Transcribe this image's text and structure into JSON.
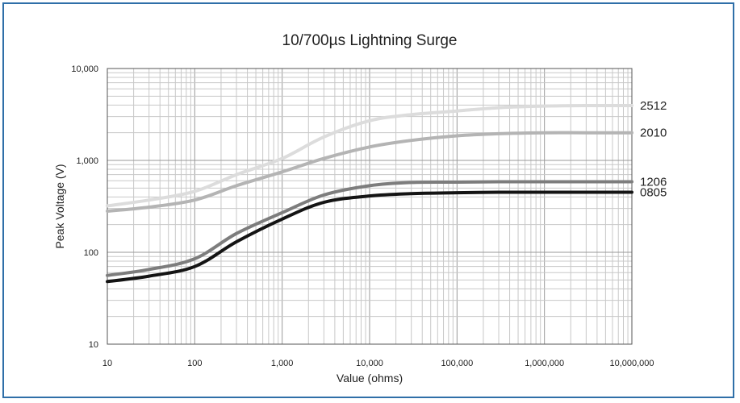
{
  "chart_data": {
    "type": "line",
    "title": "10/700µs Lightning Surge",
    "xlabel": "Value (ohms)",
    "ylabel": "Peak Voltage (V)",
    "x_scale": "log",
    "y_scale": "log",
    "xlim": [
      10,
      10000000
    ],
    "ylim": [
      10,
      10000
    ],
    "grid": true,
    "x_ticks": [
      {
        "value": 10,
        "label": "10"
      },
      {
        "value": 100,
        "label": "100"
      },
      {
        "value": 1000,
        "label": "1,000"
      },
      {
        "value": 10000,
        "label": "10,000"
      },
      {
        "value": 100000,
        "label": "100,000"
      },
      {
        "value": 1000000,
        "label": "1,000,000"
      },
      {
        "value": 10000000,
        "label": "10,000,000"
      }
    ],
    "y_ticks": [
      {
        "value": 10,
        "label": "10"
      },
      {
        "value": 100,
        "label": "100"
      },
      {
        "value": 1000,
        "label": "1,000"
      },
      {
        "value": 10000,
        "label": "10,000"
      }
    ],
    "x": [
      10,
      30,
      100,
      300,
      1000,
      3000,
      10000,
      30000,
      100000,
      300000,
      1000000,
      3000000,
      10000000
    ],
    "series": [
      {
        "name": "2512",
        "color": "#dcdcdc",
        "values": [
          320,
          370,
          460,
          700,
          1050,
          1800,
          2700,
          3150,
          3450,
          3750,
          3900,
          3950,
          3950
        ]
      },
      {
        "name": "2010",
        "color": "#b4b4b4",
        "values": [
          280,
          310,
          370,
          530,
          750,
          1050,
          1400,
          1650,
          1850,
          1950,
          2000,
          2000,
          2000
        ]
      },
      {
        "name": "1206",
        "color": "#7d7d7d",
        "values": [
          56,
          65,
          85,
          160,
          270,
          420,
          530,
          575,
          580,
          585,
          585,
          585,
          585
        ]
      },
      {
        "name": "0805",
        "color": "#141414",
        "values": [
          48,
          55,
          70,
          130,
          230,
          350,
          410,
          435,
          445,
          450,
          450,
          450,
          450
        ]
      }
    ]
  }
}
